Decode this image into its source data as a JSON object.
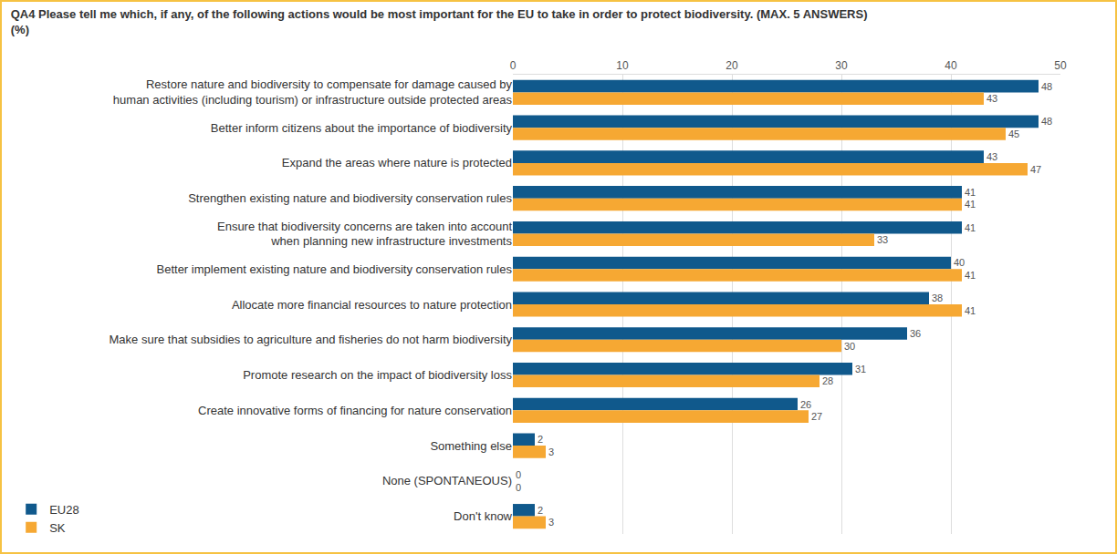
{
  "chart_data": {
    "type": "bar",
    "orientation": "horizontal",
    "title": "QA4 Please tell me which, if any, of the following actions would be most important for the EU to take in order to protect biodiversity. (MAX. 5 ANSWERS)",
    "subtitle": "(%)",
    "categories": [
      "Restore nature and biodiversity to compensate for damage caused by\nhuman activities (including tourism) or infrastructure outside protected areas",
      "Better inform citizens about the importance of biodiversity",
      "Expand the areas where nature is protected",
      "Strengthen existing nature and biodiversity conservation rules",
      "Ensure that biodiversity concerns are taken into account\nwhen planning new infrastructure investments",
      "Better implement existing nature and biodiversity conservation rules",
      "Allocate more financial resources to nature protection",
      "Make sure that subsidies to agriculture and fisheries do not harm biodiversity",
      "Promote research on the impact of biodiversity loss",
      "Create innovative forms of financing for nature conservation",
      "Something else",
      "None (SPONTANEOUS)",
      "Don't know"
    ],
    "series": [
      {
        "name": "EU28",
        "color": "#10598c",
        "values": [
          48,
          48,
          43,
          41,
          41,
          40,
          38,
          36,
          31,
          26,
          2,
          0,
          2
        ]
      },
      {
        "name": "SK",
        "color": "#f6a833",
        "values": [
          43,
          45,
          47,
          41,
          33,
          41,
          41,
          30,
          28,
          27,
          3,
          0,
          3
        ]
      }
    ],
    "xlim": [
      0,
      50
    ],
    "xticks": [
      0,
      10,
      20,
      30,
      40,
      50
    ],
    "grid": true,
    "data_labels": true,
    "legend": "lower left"
  }
}
